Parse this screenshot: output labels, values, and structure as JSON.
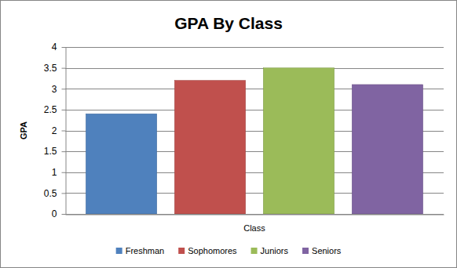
{
  "chart_data": {
    "type": "bar",
    "title": "GPA By Class",
    "x_label": "Class",
    "y_label": "GPA",
    "categories": [
      null
    ],
    "series": [
      {
        "name": "Freshman",
        "color": "#4f81bd",
        "values": [
          2.4
        ]
      },
      {
        "name": "Sophomores",
        "color": "#c0504d",
        "values": [
          3.2
        ]
      },
      {
        "name": "Juniors",
        "color": "#9bbb59",
        "values": [
          3.5
        ]
      },
      {
        "name": "Seniors",
        "color": "#8064a2",
        "values": [
          3.1
        ]
      }
    ],
    "ylim": [
      0,
      4
    ],
    "yticks": [
      0,
      0.5,
      1,
      1.5,
      2,
      2.5,
      3,
      3.5,
      4
    ],
    "grid": true,
    "legend": "bottom"
  }
}
